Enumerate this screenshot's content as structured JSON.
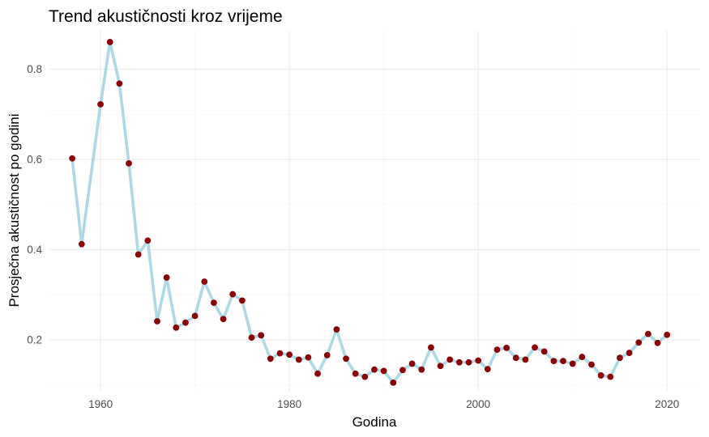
{
  "chart_data": {
    "type": "line",
    "title": "Trend akustičnosti kroz vrijeme",
    "xlabel": "Godina",
    "ylabel": "Prosječna akustičnost po godini",
    "xlim": [
      1954.5,
      2023.5
    ],
    "ylim": [
      0.085,
      0.885
    ],
    "x_ticks": [
      1960,
      1980,
      2000,
      2020
    ],
    "x_tick_labels": [
      "1960",
      "1980",
      "2000",
      "2020"
    ],
    "y_ticks": [
      0.2,
      0.4,
      0.6,
      0.8
    ],
    "y_tick_labels": [
      "0.2",
      "0.4",
      "0.6",
      "0.8"
    ],
    "grid": true,
    "legend": "none",
    "series": [
      {
        "x": [
          1957,
          1958,
          1960,
          1961,
          1962,
          1963,
          1964,
          1965,
          1966,
          1967,
          1968,
          1969,
          1970,
          1971,
          1972,
          1973,
          1974,
          1975,
          1976,
          1977,
          1978,
          1979,
          1980,
          1981,
          1982,
          1983,
          1984,
          1985,
          1986,
          1987,
          1988,
          1989,
          1990,
          1991,
          1992,
          1993,
          1994,
          1995,
          1996,
          1997,
          1998,
          1999,
          2000,
          2001,
          2002,
          2003,
          2004,
          2005,
          2006,
          2007,
          2008,
          2009,
          2010,
          2011,
          2012,
          2013,
          2014,
          2015,
          2016,
          2017,
          2018,
          2019,
          2020
        ],
        "y": [
          0.602,
          0.412,
          0.722,
          0.86,
          0.768,
          0.591,
          0.389,
          0.42,
          0.241,
          0.338,
          0.227,
          0.238,
          0.253,
          0.329,
          0.282,
          0.246,
          0.301,
          0.287,
          0.205,
          0.21,
          0.158,
          0.17,
          0.167,
          0.156,
          0.161,
          0.125,
          0.166,
          0.223,
          0.158,
          0.125,
          0.118,
          0.134,
          0.131,
          0.105,
          0.133,
          0.147,
          0.134,
          0.183,
          0.142,
          0.156,
          0.15,
          0.15,
          0.154,
          0.135,
          0.178,
          0.182,
          0.16,
          0.156,
          0.183,
          0.174,
          0.153,
          0.153,
          0.147,
          0.162,
          0.145,
          0.121,
          0.118,
          0.16,
          0.171,
          0.194,
          0.213,
          0.193,
          0.211
        ]
      }
    ],
    "colors": {
      "line": "#add8e6",
      "point": "#8b0000",
      "grid_major": "#ebebeb",
      "grid_minor": "#f2f2f2",
      "text": "#000000",
      "tick_text": "#4d4d4d"
    }
  }
}
